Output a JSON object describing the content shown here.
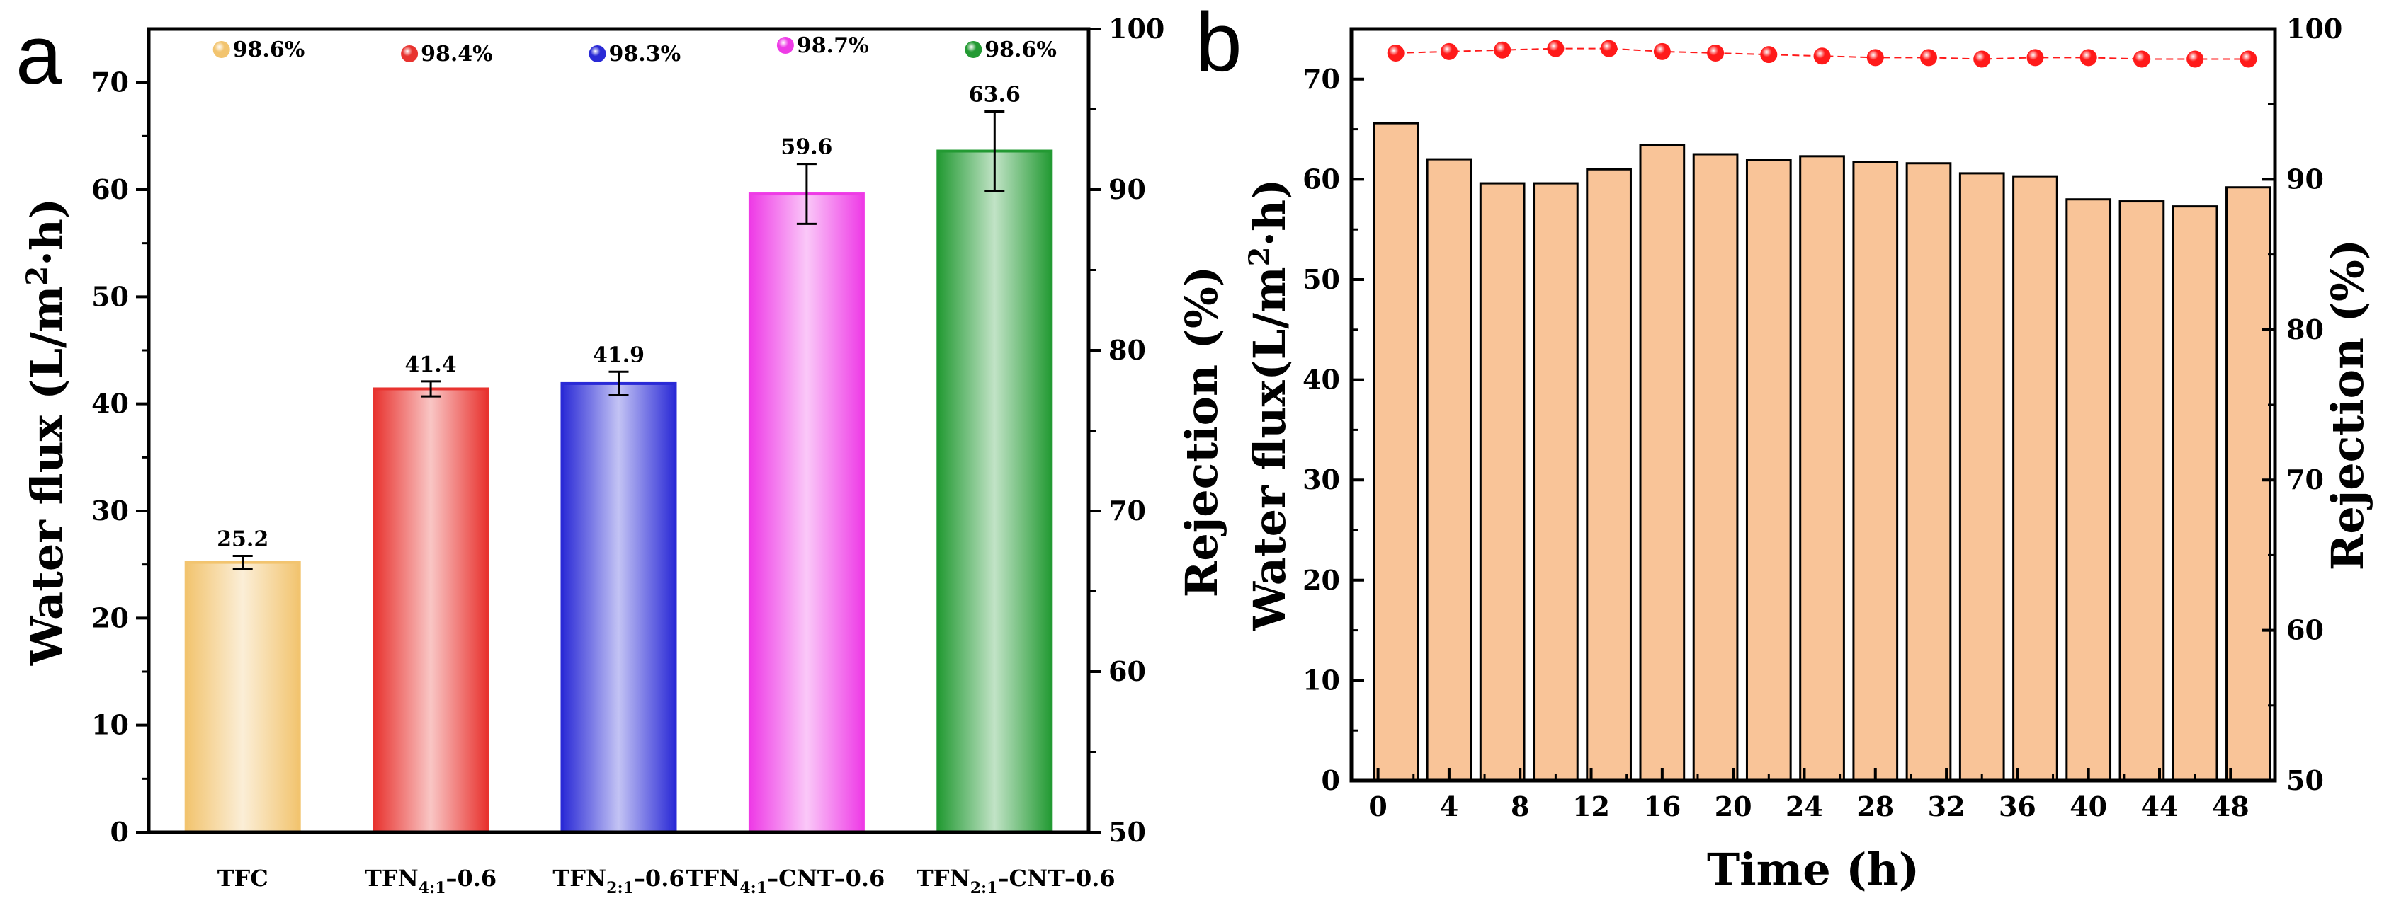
{
  "colors": {
    "tfc": "#f2c46f",
    "tfn41": "#e8332f",
    "tfn21": "#2a2ad6",
    "tfn41cnt": "#ee3be6",
    "tfn21cnt": "#239a33",
    "bar_b": "#f9c498",
    "rej_point": "#ff1a1a",
    "rej_line": "#ff1a1a"
  },
  "chart_data": [
    {
      "panel": "a",
      "type": "bar",
      "ylabel": "Water flux (L/m",
      "ylabel_sup": "2",
      "ylabel_tail": "·h)",
      "y2label": "Rejection (%)",
      "ylim": [
        0,
        75
      ],
      "y_ticks": [
        "0",
        "10",
        "20",
        "30",
        "40",
        "50",
        "60",
        "70"
      ],
      "y2lim": [
        50,
        100
      ],
      "y2_ticks": [
        "50",
        "60",
        "70",
        "80",
        "90",
        "100"
      ],
      "categories": [
        {
          "main": "TFC",
          "sub": "",
          "tail": ""
        },
        {
          "main": "TFN",
          "sub": "4:1",
          "tail": "–0.6"
        },
        {
          "main": "TFN",
          "sub": "2:1",
          "tail": "–0.6"
        },
        {
          "main": "TFN",
          "sub": "4:1",
          "tail": "–CNT–0.6"
        },
        {
          "main": "TFN",
          "sub": "2:1",
          "tail": "–CNT–0.6"
        }
      ],
      "values": [
        25.2,
        41.4,
        41.9,
        59.6,
        63.6
      ],
      "value_labels": [
        "25.2",
        "41.4",
        "41.9",
        "59.6",
        "63.6"
      ],
      "errors": [
        0.6,
        0.7,
        1.1,
        2.8,
        3.7
      ],
      "rejection_labels": [
        "98.6%",
        "98.4%",
        "98.3%",
        "98.7%",
        "98.6%"
      ]
    },
    {
      "panel": "b",
      "type": "bar",
      "xlabel": "Time (h)",
      "ylabel": "Water flux(L/m",
      "ylabel_sup": "2",
      "ylabel_tail": "·h)",
      "y2label": "Rejection (%)",
      "ylim": [
        0,
        75
      ],
      "y_ticks": [
        "0",
        "10",
        "20",
        "30",
        "40",
        "50",
        "60",
        "70"
      ],
      "y2lim": [
        50,
        100
      ],
      "y2_ticks": [
        "50",
        "60",
        "70",
        "80",
        "90",
        "100"
      ],
      "xlim": [
        -1.5,
        50.5
      ],
      "x_ticks": [
        "0",
        "4",
        "8",
        "12",
        "16",
        "20",
        "24",
        "28",
        "32",
        "36",
        "40",
        "44",
        "48"
      ],
      "x": [
        1,
        4,
        7,
        10,
        13,
        16,
        19,
        22,
        25,
        28,
        31,
        34,
        37,
        40,
        43,
        46,
        49
      ],
      "values": [
        65.6,
        62.0,
        59.6,
        59.6,
        61.0,
        63.4,
        62.5,
        61.9,
        62.3,
        61.7,
        61.6,
        60.6,
        60.3,
        58.0,
        57.8,
        57.3,
        59.2
      ],
      "rejection": [
        98.4,
        98.5,
        98.6,
        98.7,
        98.7,
        98.5,
        98.4,
        98.3,
        98.2,
        98.1,
        98.1,
        98.0,
        98.1,
        98.1,
        98.0,
        98.0,
        98.0
      ]
    }
  ]
}
